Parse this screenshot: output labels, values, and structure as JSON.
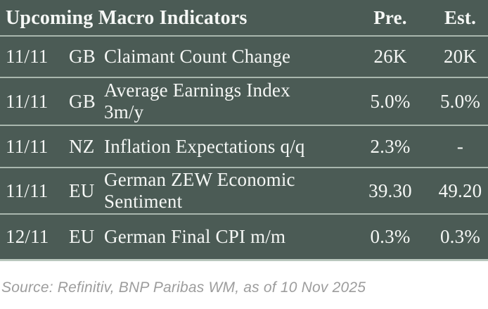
{
  "table": {
    "title": "Upcoming Macro Indicators",
    "columns": {
      "pre": "Pre.",
      "est": "Est."
    },
    "rows": [
      {
        "date": "11/11",
        "country": "GB",
        "indicator": "Claimant Count Change",
        "pre": "26K",
        "est": "20K"
      },
      {
        "date": "11/11",
        "country": "GB",
        "indicator": "Average Earnings Index\n3m/y",
        "pre": "5.0%",
        "est": "5.0%"
      },
      {
        "date": "11/11",
        "country": "NZ",
        "indicator": "Inflation Expectations q/q",
        "pre": "2.3%",
        "est": "-"
      },
      {
        "date": "11/11",
        "country": "EU",
        "indicator": "German ZEW Economic\nSentiment",
        "pre": "39.30",
        "est": "49.20"
      },
      {
        "date": "12/11",
        "country": "EU",
        "indicator": "German Final CPI m/m",
        "pre": "0.3%",
        "est": "0.3%"
      }
    ]
  },
  "footer": {
    "source": "Source: Refinitiv, BNP Paribas WM, as of 10 Nov 2025"
  },
  "colors": {
    "table_bg": "#4b5b55",
    "separator": "#a9b7ae",
    "bottom_line": "#b9c7bd",
    "text": "#f5f7f5",
    "source_text": "#9d9d9d",
    "page_bg": "#ffffff"
  }
}
